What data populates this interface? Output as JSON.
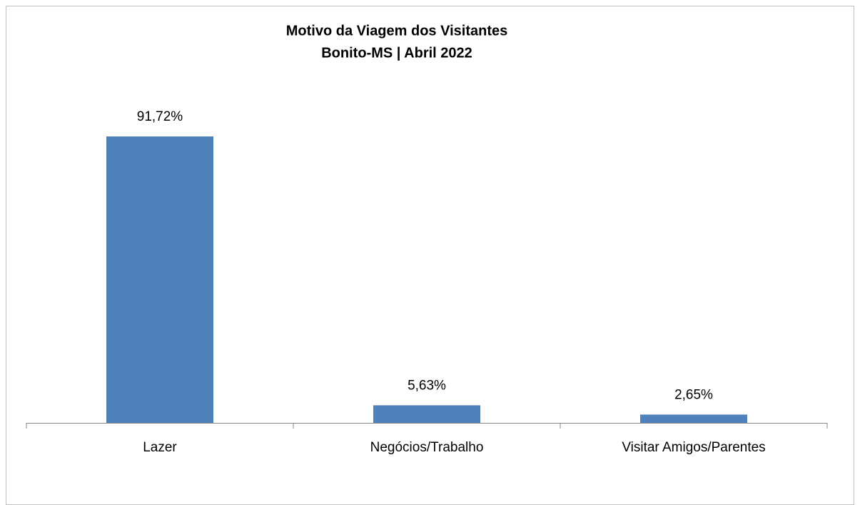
{
  "chart_data": {
    "type": "bar",
    "title": "Motivo da Viagem dos Visitantes",
    "subtitle": "Bonito-MS | Abril 2022",
    "categories": [
      "Lazer",
      "Negócios/Trabalho",
      "Visitar Amigos/Parentes"
    ],
    "values": [
      91.72,
      5.63,
      2.65
    ],
    "value_labels": [
      "91,72%",
      "5,63%",
      "2,65%"
    ],
    "color": "#4f81bd"
  }
}
